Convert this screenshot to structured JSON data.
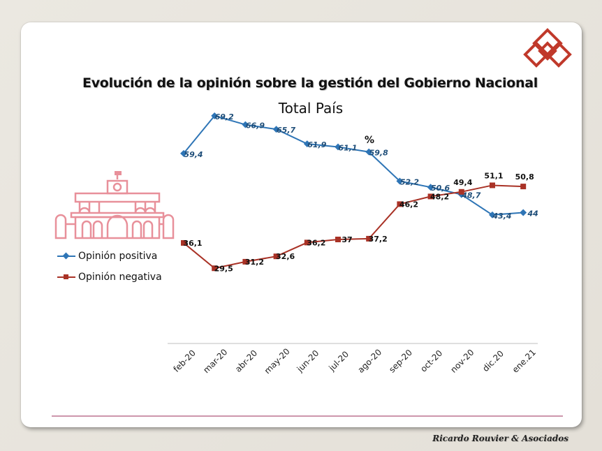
{
  "title": "Evolución de la opinión sobre la gestión del Gobierno Nacional",
  "subtitle": "Total País",
  "unit": "%",
  "footer": "Ricardo Rouvier & Asociados",
  "colors": {
    "positive": "#2E75B6",
    "negative": "#A93226",
    "accent": "#C0392B",
    "building": "#E8909A"
  },
  "icons": {
    "logo": "diamond-logo-icon",
    "building": "casa-rosada-building-icon"
  },
  "chart_data": {
    "type": "line",
    "categories": [
      "feb-20",
      "mar-20",
      "abr-20",
      "may-20",
      "jun-20",
      "jul-20",
      "ago-20",
      "sep-20",
      "oct-20",
      "nov-20",
      "dic.20",
      "ene.21"
    ],
    "series": [
      {
        "name": "Opinión positiva",
        "values": [
          59.4,
          69.2,
          66.9,
          65.7,
          61.9,
          61.1,
          59.8,
          52.2,
          50.6,
          48.7,
          43.4,
          44
        ],
        "labels": [
          "59,4",
          "69,2",
          "66,9",
          "65,7",
          "61,9",
          "61,1",
          "59,8",
          "52,2",
          "50,6",
          "48,7",
          "43,4",
          "44"
        ]
      },
      {
        "name": "Opinión negativa",
        "values": [
          36.1,
          29.5,
          31.2,
          32.6,
          36.2,
          37,
          37.2,
          46.2,
          48.2,
          49.4,
          51.1,
          50.8
        ],
        "labels": [
          "36,1",
          "29,5",
          "31,2",
          "32,6",
          "36,2",
          "37",
          "37,2",
          "46,2",
          "48,2",
          "49,4",
          "51,1",
          "50,8"
        ]
      }
    ],
    "legend": "left",
    "grid": false
  }
}
